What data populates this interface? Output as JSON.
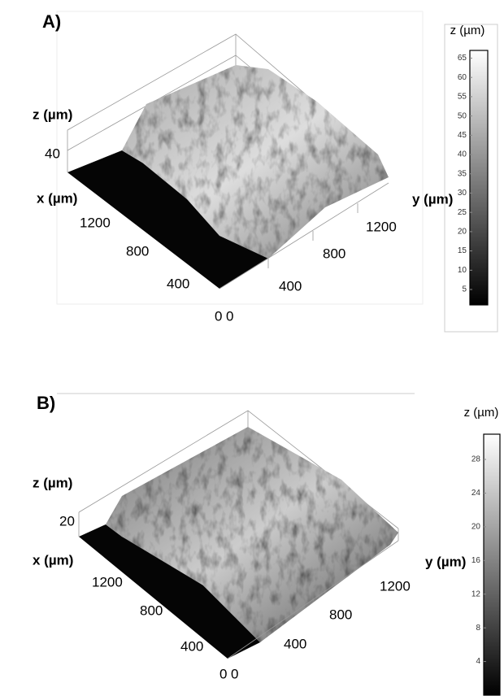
{
  "panels": [
    {
      "label": "A)",
      "z_label": "z (µm)",
      "z_tick": 40,
      "x_label": "x (µm)",
      "x_ticks": [
        1200,
        800,
        400,
        0
      ],
      "y_label": "y (µm)",
      "y_ticks": [
        1200,
        800,
        400,
        0
      ],
      "colorbar": {
        "title": "z (µm)",
        "lim": [
          1,
          67
        ],
        "ticks": [
          5,
          10,
          15,
          20,
          25,
          30,
          35,
          40,
          45,
          50,
          55,
          60,
          65
        ]
      }
    },
    {
      "label": "B)",
      "z_label": "z (µm)",
      "z_tick": 20,
      "x_label": "x (µm)",
      "x_ticks": [
        1200,
        800,
        400,
        0
      ],
      "y_label": "y (µm)",
      "y_ticks": [
        1200,
        800,
        400,
        0
      ],
      "colorbar": {
        "title": "z (µm)",
        "lim": [
          0,
          31
        ],
        "ticks": [
          4,
          8,
          12,
          16,
          20,
          24,
          28
        ]
      }
    }
  ]
}
